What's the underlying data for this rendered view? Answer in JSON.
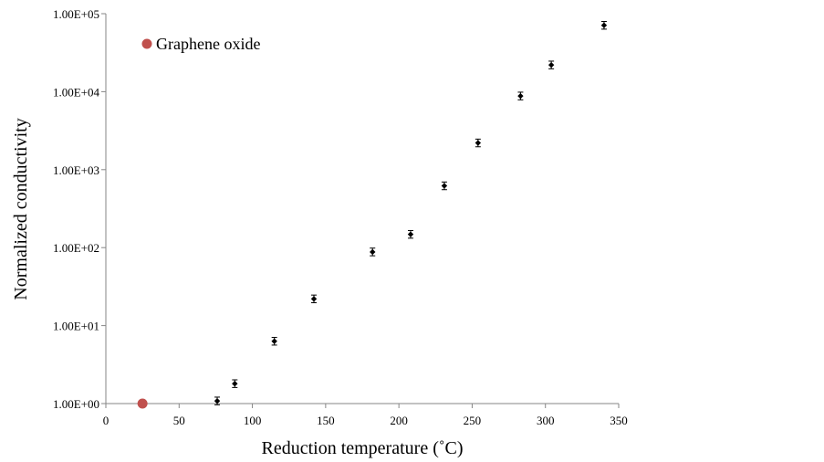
{
  "chart_data": {
    "type": "scatter",
    "xlabel": "Reduction temperature (˚C)",
    "ylabel": "Normalized conductivity",
    "xlim": [
      0,
      350
    ],
    "ylim": [
      1,
      100000
    ],
    "yscale": "log",
    "grid": false,
    "legend_position": "top-left",
    "x_ticks": [
      "0",
      "50",
      "100",
      "150",
      "200",
      "250",
      "300",
      "350"
    ],
    "x_tick_values": [
      0,
      50,
      100,
      150,
      200,
      250,
      300,
      350
    ],
    "y_ticks": [
      "1.00E+00",
      "1.00E+01",
      "1.00E+02",
      "1.00E+03",
      "1.00E+04",
      "1.00E+05"
    ],
    "y_tick_values": [
      1,
      10,
      100,
      1000,
      10000,
      100000
    ],
    "series": [
      {
        "name": "Graphene oxide",
        "color": "#c0504d",
        "marker": "circle",
        "x": [
          25
        ],
        "y": [
          1.0
        ]
      },
      {
        "color": "#000000",
        "marker": "diamond",
        "error_bars": true,
        "x": [
          76,
          88,
          115,
          142,
          182,
          208,
          231,
          254,
          283,
          304,
          340
        ],
        "y": [
          1.08,
          1.8,
          6.3,
          22,
          88,
          148,
          620,
          2200,
          8800,
          22000,
          71000
        ],
        "y_err_factor": 1.12
      }
    ]
  }
}
